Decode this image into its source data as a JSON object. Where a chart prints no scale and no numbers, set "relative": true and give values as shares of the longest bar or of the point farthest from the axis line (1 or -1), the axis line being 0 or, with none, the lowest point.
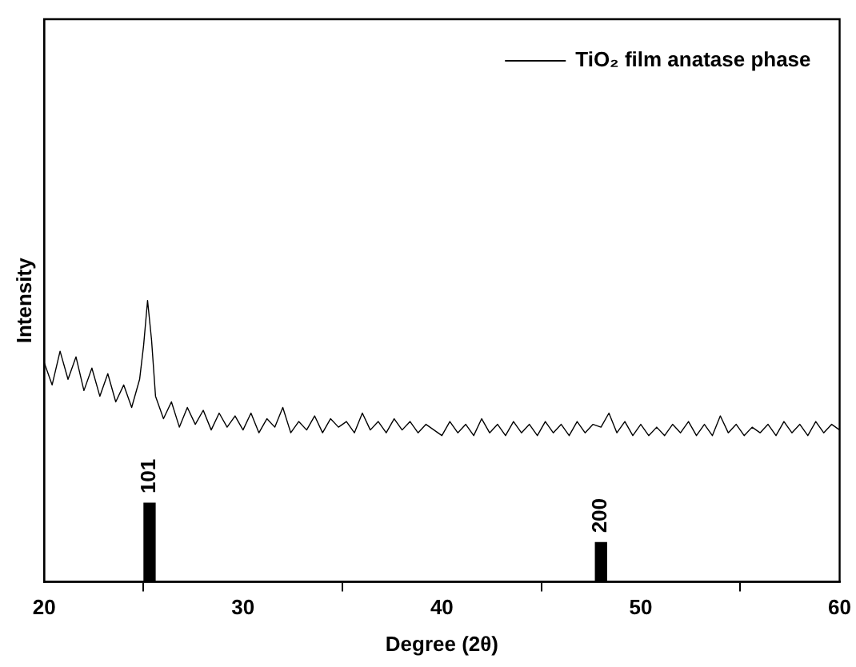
{
  "chart_data": {
    "type": "line",
    "xlabel": "Degree (2θ)",
    "ylabel": "Intensity",
    "relative": true,
    "xlim": [
      20,
      60
    ],
    "xticks": [
      20,
      30,
      40,
      50,
      60
    ],
    "legend": "top right",
    "marker": "none",
    "grid": false,
    "series": [
      {
        "name": "TiO₂ film anatase phase",
        "color": "#000000",
        "x": [
          20,
          20.4,
          20.8,
          21.2,
          21.6,
          22,
          22.4,
          22.8,
          23.2,
          23.6,
          24,
          24.4,
          24.8,
          25,
          25.2,
          25.4,
          25.6,
          26,
          26.4,
          26.8,
          27.2,
          27.6,
          28,
          28.4,
          28.8,
          29.2,
          29.6,
          30,
          30.4,
          30.8,
          31.2,
          31.6,
          32,
          32.4,
          32.8,
          33.2,
          33.6,
          34,
          34.4,
          34.8,
          35.2,
          35.6,
          36,
          36.4,
          36.8,
          37.2,
          37.6,
          38,
          38.4,
          38.8,
          39.2,
          39.6,
          40,
          40.4,
          40.8,
          41.2,
          41.6,
          42,
          42.4,
          42.8,
          43.2,
          43.6,
          44,
          44.4,
          44.8,
          45.2,
          45.6,
          46,
          46.4,
          46.8,
          47.2,
          47.6,
          48,
          48.4,
          48.8,
          49.2,
          49.6,
          50,
          50.4,
          50.8,
          51.2,
          51.6,
          52,
          52.4,
          52.8,
          53.2,
          53.6,
          54,
          54.4,
          54.8,
          55.2,
          55.6,
          56,
          56.4,
          56.8,
          57.2,
          57.6,
          58,
          58.4,
          58.8,
          59.2,
          59.6,
          60
        ],
        "values": [
          0.78,
          0.7,
          0.82,
          0.72,
          0.8,
          0.68,
          0.76,
          0.66,
          0.74,
          0.64,
          0.7,
          0.62,
          0.72,
          0.84,
          1,
          0.86,
          0.66,
          0.58,
          0.64,
          0.55,
          0.62,
          0.56,
          0.61,
          0.54,
          0.6,
          0.55,
          0.59,
          0.54,
          0.6,
          0.53,
          0.58,
          0.55,
          0.62,
          0.53,
          0.57,
          0.54,
          0.59,
          0.53,
          0.58,
          0.55,
          0.57,
          0.53,
          0.6,
          0.54,
          0.57,
          0.53,
          0.58,
          0.54,
          0.57,
          0.53,
          0.56,
          0.54,
          0.52,
          0.57,
          0.53,
          0.56,
          0.52,
          0.58,
          0.53,
          0.56,
          0.52,
          0.57,
          0.53,
          0.56,
          0.52,
          0.57,
          0.53,
          0.56,
          0.52,
          0.57,
          0.53,
          0.56,
          0.55,
          0.6,
          0.53,
          0.57,
          0.52,
          0.56,
          0.52,
          0.55,
          0.52,
          0.56,
          0.53,
          0.57,
          0.52,
          0.56,
          0.52,
          0.59,
          0.53,
          0.56,
          0.52,
          0.55,
          0.53,
          0.56,
          0.52,
          0.57,
          0.53,
          0.56,
          0.52,
          0.57,
          0.53,
          0.56,
          0.54
        ]
      },
      {
        "type": "bar",
        "color": "#000000",
        "x": [
          25.3,
          48.0
        ],
        "values": [
          0.28,
          0.14
        ]
      }
    ],
    "annotations": [
      {
        "text": "101",
        "x": 25.3,
        "y": 0.28
      },
      {
        "text": "200",
        "x": 48.0,
        "y": 0.14
      }
    ]
  }
}
